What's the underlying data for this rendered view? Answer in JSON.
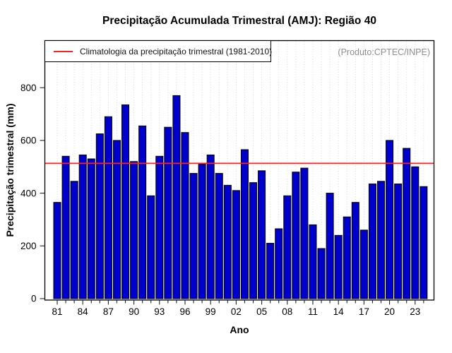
{
  "title": "Precipitação Acumulada Trimestral (AMJ): Região 40",
  "legend": {
    "label": "Climatologia da precipitação trimestral (1981-2010)"
  },
  "watermark": "(Produto:CPTEC/INPE)",
  "chart_data": {
    "type": "bar",
    "title": "Precipitação Acumulada Trimestral (AMJ): Região 40",
    "xlabel": "Ano",
    "ylabel": "Precipitação trimestral (mm)",
    "years": [
      1981,
      1982,
      1983,
      1984,
      1985,
      1986,
      1987,
      1988,
      1989,
      1990,
      1991,
      1992,
      1993,
      1994,
      1995,
      1996,
      1997,
      1998,
      1999,
      2000,
      2001,
      2002,
      2003,
      2004,
      2005,
      2006,
      2007,
      2008,
      2009,
      2010,
      2011,
      2012,
      2013,
      2014,
      2015,
      2016,
      2017,
      2018,
      2019,
      2020,
      2021,
      2022,
      2023,
      2024
    ],
    "values": [
      365,
      540,
      445,
      545,
      530,
      625,
      690,
      600,
      735,
      520,
      655,
      390,
      540,
      650,
      770,
      630,
      475,
      510,
      545,
      475,
      430,
      410,
      565,
      440,
      485,
      210,
      265,
      390,
      480,
      495,
      280,
      190,
      400,
      240,
      310,
      365,
      260,
      435,
      445,
      600,
      435,
      570,
      500,
      425
    ],
    "x_tick_labels": [
      "81",
      "84",
      "87",
      "90",
      "93",
      "96",
      "99",
      "02",
      "05",
      "08",
      "11",
      "14",
      "17",
      "20",
      "23"
    ],
    "y_ticks": [
      0,
      200,
      400,
      600,
      800
    ],
    "ylim": [
      0,
      975
    ],
    "grid": "dotted-vertical-per-year",
    "legend_position": "top-left-inside",
    "climatology_value": 513,
    "climatology_label": "Climatologia da precipitação trimestral (1981-2010)",
    "colors": {
      "bar_fill": "#0000CC",
      "bar_border": "#000000",
      "climatology_line": "#FF2222",
      "grid_line": "#d4d4d4",
      "frame": "#000000",
      "watermark_text": "#8f8f8f"
    }
  }
}
